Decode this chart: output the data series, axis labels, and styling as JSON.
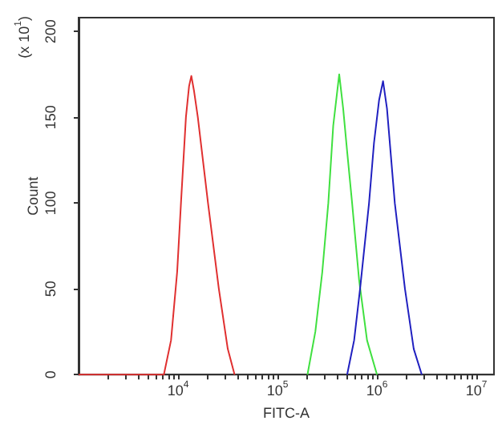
{
  "chart_data": {
    "type": "line",
    "xlabel": "FITC-A",
    "ylabel": "Count",
    "annotations": [
      "(x 10$^{1}$)"
    ],
    "log": "x",
    "grid": false,
    "marker": "none",
    "line_style": "solid",
    "xlim": [
      1000,
      15000000
    ],
    "ylim": [
      0,
      208
    ],
    "xticks": [
      {
        "value": 2000,
        "label": null
      },
      {
        "value": 3000,
        "label": null
      },
      {
        "value": 4000,
        "label": null
      },
      {
        "value": 5000,
        "label": null
      },
      {
        "value": 6000,
        "label": null
      },
      {
        "value": 7000,
        "label": null
      },
      {
        "value": 8000,
        "label": null
      },
      {
        "value": 9000,
        "label": null
      },
      {
        "value": 10000,
        "label": "10$^{4}$"
      },
      {
        "value": 20000,
        "label": null
      },
      {
        "value": 30000,
        "label": null
      },
      {
        "value": 40000,
        "label": null
      },
      {
        "value": 50000,
        "label": null
      },
      {
        "value": 60000,
        "label": null
      },
      {
        "value": 70000,
        "label": null
      },
      {
        "value": 80000,
        "label": null
      },
      {
        "value": 90000,
        "label": null
      },
      {
        "value": 100000,
        "label": "10$^{5}$"
      },
      {
        "value": 200000,
        "label": null
      },
      {
        "value": 300000,
        "label": null
      },
      {
        "value": 400000,
        "label": null
      },
      {
        "value": 500000,
        "label": null
      },
      {
        "value": 600000,
        "label": null
      },
      {
        "value": 700000,
        "label": null
      },
      {
        "value": 800000,
        "label": null
      },
      {
        "value": 900000,
        "label": null
      },
      {
        "value": 1000000,
        "label": "10$^{6}$"
      },
      {
        "value": 2000000,
        "label": null
      },
      {
        "value": 3000000,
        "label": null
      },
      {
        "value": 4000000,
        "label": null
      },
      {
        "value": 5000000,
        "label": null
      },
      {
        "value": 6000000,
        "label": null
      },
      {
        "value": 7000000,
        "label": null
      },
      {
        "value": 8000000,
        "label": null
      },
      {
        "value": 9000000,
        "label": null
      },
      {
        "value": 10000000,
        "label": "10$^{7}$"
      }
    ],
    "yticks": [
      0,
      50,
      100,
      150,
      200
    ],
    "series": [
      {
        "color": "#e03030",
        "x": [
          1000,
          7200,
          8500,
          9800,
          10700,
          12000,
          12900,
          13600,
          14500,
          15800,
          20000,
          25700,
          31600,
          37000
        ],
        "values": [
          0,
          0,
          20,
          60,
          100,
          150,
          168,
          174,
          165,
          150,
          100,
          50,
          15,
          0
        ]
      },
      {
        "color": "#40e040",
        "x": [
          200000,
          240000,
          282000,
          324000,
          363000,
          417000,
          457000,
          501000,
          562000,
          661000,
          794000,
          1000000
        ],
        "values": [
          0,
          25,
          60,
          100,
          145,
          175,
          155,
          130,
          100,
          55,
          20,
          0
        ]
      },
      {
        "color": "#2020c0",
        "x": [
          501000,
          589000,
          676000,
          832000,
          933000,
          1050000,
          1150000,
          1260000,
          1510000,
          1910000,
          2340000,
          2820000
        ],
        "values": [
          0,
          20,
          50,
          100,
          135,
          160,
          171,
          155,
          100,
          50,
          15,
          0
        ]
      }
    ]
  }
}
